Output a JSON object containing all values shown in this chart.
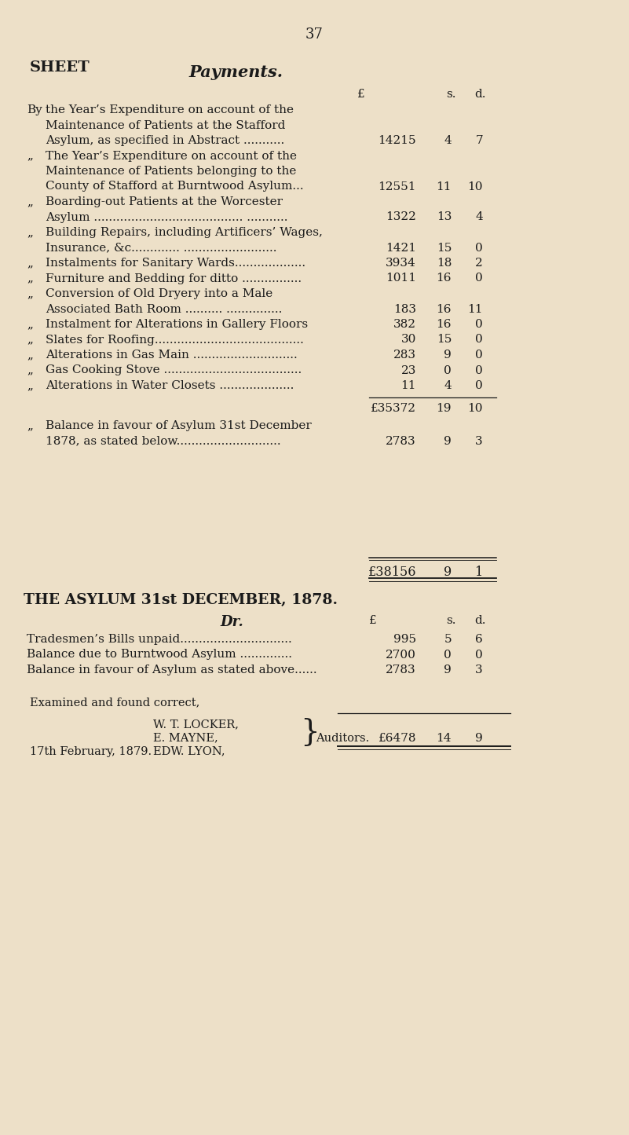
{
  "bg_color": "#ede0c8",
  "text_color": "#1a1a1a",
  "page_number": "37",
  "sheet_label": "SHEET",
  "payments_title": "Payments.",
  "entries": [
    {
      "prefix": "By",
      "lines": [
        "the Year’s Expenditure on account of the",
        "Maintenance of Patients at the Stafford",
        "Asylum, as specified in Abstract ..........."
      ],
      "pounds": "14215",
      "shillings": "4",
      "pence": "7"
    },
    {
      "prefix": "„",
      "lines": [
        "The Year’s Expenditure on account of the",
        "Maintenance of Patients belonging to the",
        "County of Stafford at Burntwood Asylum..."
      ],
      "pounds": "12551",
      "shillings": "11",
      "pence": "10"
    },
    {
      "prefix": "„",
      "lines": [
        "Boarding-out Patients at the Worcester",
        "Asylum ........................................ ..........."
      ],
      "pounds": "1322",
      "shillings": "13",
      "pence": "4"
    },
    {
      "prefix": "„",
      "lines": [
        "Building Repairs, including Artificers’ Wages,",
        "Insurance, &c............. ........................."
      ],
      "pounds": "1421",
      "shillings": "15",
      "pence": "0"
    },
    {
      "prefix": "„",
      "lines": [
        "Instalments for Sanitary Wards..................."
      ],
      "pounds": "3934",
      "shillings": "18",
      "pence": "2"
    },
    {
      "prefix": "„",
      "lines": [
        "Furniture and Bedding for ditto ................"
      ],
      "pounds": "1011",
      "shillings": "16",
      "pence": "0"
    },
    {
      "prefix": "„",
      "lines": [
        "Conversion of Old Dryery into a Male",
        "Associated Bath Room .......... ..............."
      ],
      "pounds": "183",
      "shillings": "16",
      "pence": "11"
    },
    {
      "prefix": "„",
      "lines": [
        "Instalment for Alterations in Gallery Floors"
      ],
      "pounds": "382",
      "shillings": "16",
      "pence": "0"
    },
    {
      "prefix": "„",
      "lines": [
        "Slates for Roofing........................................"
      ],
      "pounds": "30",
      "shillings": "15",
      "pence": "0"
    },
    {
      "prefix": "„",
      "lines": [
        "Alterations in Gas Main ............................"
      ],
      "pounds": "283",
      "shillings": "9",
      "pence": "0"
    },
    {
      "prefix": "„",
      "lines": [
        "Gas Cooking Stove ....................................."
      ],
      "pounds": "23",
      "shillings": "0",
      "pence": "0"
    },
    {
      "prefix": "„",
      "lines": [
        "Alterations in Water Closets ...................."
      ],
      "pounds": "11",
      "shillings": "4",
      "pence": "0"
    }
  ],
  "subtotal_pounds": "£35372",
  "subtotal_s": "19",
  "subtotal_d": "10",
  "balance_lines": [
    "Balance in favour of Asylum 31st December",
    "1878, as stated below............................"
  ],
  "balance_pounds": "2783",
  "balance_s": "9",
  "balance_d": "3",
  "total_pounds": "£38156",
  "total_s": "9",
  "total_d": "1",
  "section2_title": "THE ASYLUM 31st DECEMBER, 1878.",
  "section2_subtitle": "Dr.",
  "section2_entries": [
    {
      "text": "Tradesmen’s Bills unpaid..............................",
      "pounds": "995",
      "shillings": "5",
      "pence": "6"
    },
    {
      "text": "Balance due to Burntwood Asylum ..............",
      "pounds": "2700",
      "shillings": "0",
      "pence": "0"
    },
    {
      "text": "Balance in favour of Asylum as stated above......",
      "pounds": "2783",
      "shillings": "9",
      "pence": "3"
    }
  ],
  "examined_text": "Examined and found correct,",
  "auditor1": "W. T. LOCKER,",
  "auditor2": "E. MAYNE,",
  "auditor3": "EDW. LYON,",
  "auditor_word": "Auditors.",
  "date_text": "17th February, 1879.",
  "section2_total": "£6478 14  9"
}
